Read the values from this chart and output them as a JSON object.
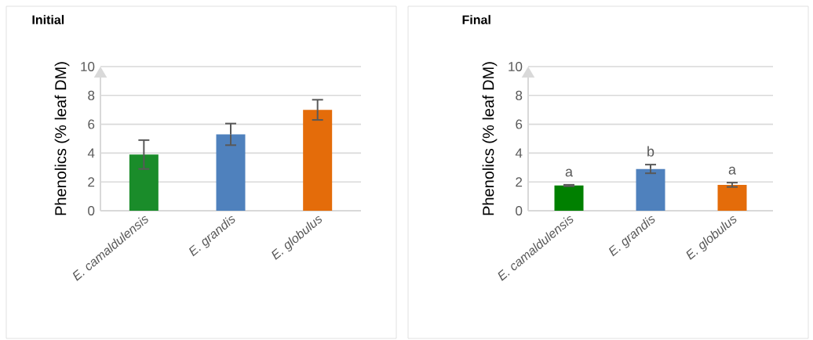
{
  "chart_data": [
    {
      "type": "bar",
      "title": "Initial",
      "ylabel": "Phenolics (% leaf DM)",
      "categories": [
        "E. camaldulensis",
        "E. grandis",
        "E. globulus"
      ],
      "values": [
        3.9,
        5.3,
        7.0
      ],
      "errors": [
        1.0,
        0.75,
        0.7
      ],
      "colors": [
        "#1a8c2a",
        "#4f81bd",
        "#e46c0a"
      ],
      "ylim": [
        0,
        10
      ],
      "yticks": [
        0,
        2,
        4,
        6,
        8,
        10
      ],
      "grid": "y"
    },
    {
      "type": "bar",
      "title": "Final",
      "ylabel": "Phenolics (% leaf DM)",
      "categories": [
        "E. camaldulensis",
        "E. grandis",
        "E. globulus"
      ],
      "values": [
        1.75,
        2.9,
        1.8
      ],
      "errors": [
        0.05,
        0.3,
        0.15
      ],
      "colors": [
        "#008000",
        "#4f81bd",
        "#e46c0a"
      ],
      "ylim": [
        0,
        10
      ],
      "yticks": [
        0,
        2,
        4,
        6,
        8,
        10
      ],
      "grid": "y",
      "annotations": [
        "a",
        "b",
        "a"
      ]
    }
  ]
}
